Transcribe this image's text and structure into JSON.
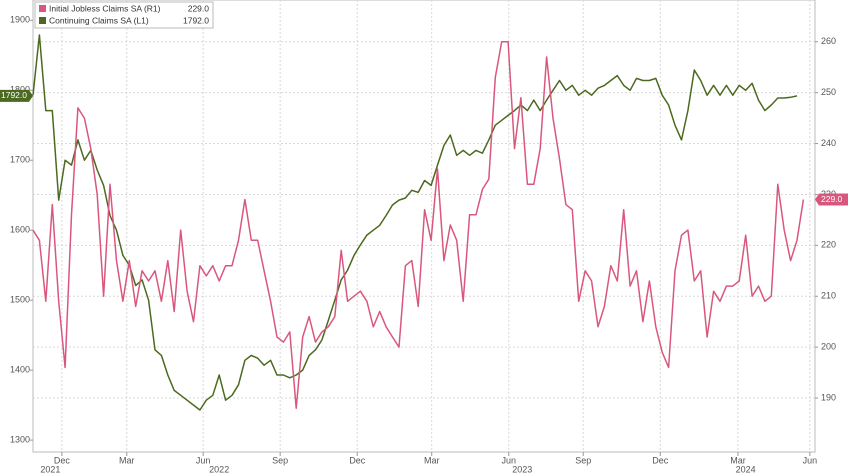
{
  "chart_data": {
    "type": "line",
    "xlim": [
      0,
      121.8
    ],
    "xticks": [
      {
        "value": 4.5,
        "label": "Dec"
      },
      {
        "value": 14.6,
        "label": "Mar"
      },
      {
        "value": 26.5,
        "label": "Jun"
      },
      {
        "value": 38.5,
        "label": "Sep"
      },
      {
        "value": 50.5,
        "label": "Dec"
      },
      {
        "value": 62.1,
        "label": "Mar"
      },
      {
        "value": 74.1,
        "label": "Jun"
      },
      {
        "value": 85.7,
        "label": "Sep"
      },
      {
        "value": 97.7,
        "label": "Dec"
      },
      {
        "value": 109.8,
        "label": "Mar"
      },
      {
        "value": 121,
        "label": "Jun"
      }
    ],
    "year_ticks": [
      {
        "value": 2.7,
        "label": "2021"
      },
      {
        "value": 29,
        "label": "2022"
      },
      {
        "value": 76.2,
        "label": "2023"
      },
      {
        "value": 111,
        "label": "2024"
      }
    ],
    "ylim": [
      1283,
      1929
    ],
    "yticks": [
      1300,
      1400,
      1500,
      1600,
      1700,
      1800,
      1900
    ],
    "y2lim": [
      179.4,
      268.2
    ],
    "y2ticks": [
      190,
      200,
      210,
      220,
      230,
      240,
      250,
      260
    ],
    "grid": true,
    "legend": "top-left",
    "series": [
      {
        "name": "Initial Jobless Claims SA (R1)",
        "last_value_label": "229.0",
        "color": "#d9577d",
        "axis": "y2",
        "values": [
          223,
          221,
          209,
          228,
          209,
          196,
          226,
          247,
          245,
          239,
          230,
          210,
          232,
          217,
          209,
          217,
          208,
          215,
          213,
          215,
          209,
          217,
          207,
          223,
          211,
          205,
          216,
          214,
          216,
          213,
          216,
          216,
          221,
          229,
          221,
          221,
          215,
          209,
          202,
          201,
          203,
          188,
          202,
          206,
          201,
          203,
          204,
          206,
          219,
          209,
          210,
          211,
          209,
          204,
          207,
          204,
          202,
          200,
          216,
          217,
          208,
          227,
          221,
          235,
          217,
          224,
          221,
          209,
          226,
          226,
          231,
          233,
          253,
          260,
          260,
          239,
          249,
          232,
          232,
          239,
          257,
          245,
          237,
          228,
          227,
          209,
          215,
          213,
          204,
          208,
          216,
          213,
          227,
          212,
          215,
          205,
          213,
          204,
          199,
          196,
          215,
          222,
          223,
          213,
          215,
          202,
          211,
          209,
          212,
          212,
          213,
          222,
          210,
          212,
          209,
          210,
          232,
          223,
          217,
          221,
          229
        ]
      },
      {
        "name": "Continuing Claims SA (L1)",
        "last_value_label": "1792.0",
        "color": "#4b6a1f",
        "axis": "y",
        "values": [
          1793,
          1879,
          1771,
          1771,
          1643,
          1700,
          1693,
          1729,
          1700,
          1714,
          1686,
          1664,
          1621,
          1600,
          1564,
          1550,
          1521,
          1529,
          1500,
          1429,
          1421,
          1393,
          1371,
          1364,
          1357,
          1350,
          1343,
          1357,
          1364,
          1393,
          1357,
          1364,
          1379,
          1414,
          1421,
          1417,
          1407,
          1414,
          1393,
          1393,
          1389,
          1393,
          1400,
          1421,
          1429,
          1443,
          1471,
          1500,
          1529,
          1543,
          1564,
          1579,
          1593,
          1600,
          1607,
          1621,
          1636,
          1643,
          1646,
          1657,
          1654,
          1671,
          1664,
          1693,
          1721,
          1736,
          1707,
          1714,
          1707,
          1714,
          1710,
          1729,
          1750,
          1757,
          1764,
          1771,
          1779,
          1771,
          1786,
          1771,
          1786,
          1800,
          1814,
          1800,
          1807,
          1793,
          1800,
          1793,
          1803,
          1807,
          1814,
          1821,
          1807,
          1800,
          1817,
          1814,
          1814,
          1817,
          1793,
          1779,
          1750,
          1729,
          1771,
          1829,
          1814,
          1793,
          1807,
          1793,
          1807,
          1793,
          1807,
          1800,
          1810,
          1786,
          1771,
          1779,
          1789,
          1789,
          1790,
          1792,
          null
        ]
      }
    ]
  }
}
